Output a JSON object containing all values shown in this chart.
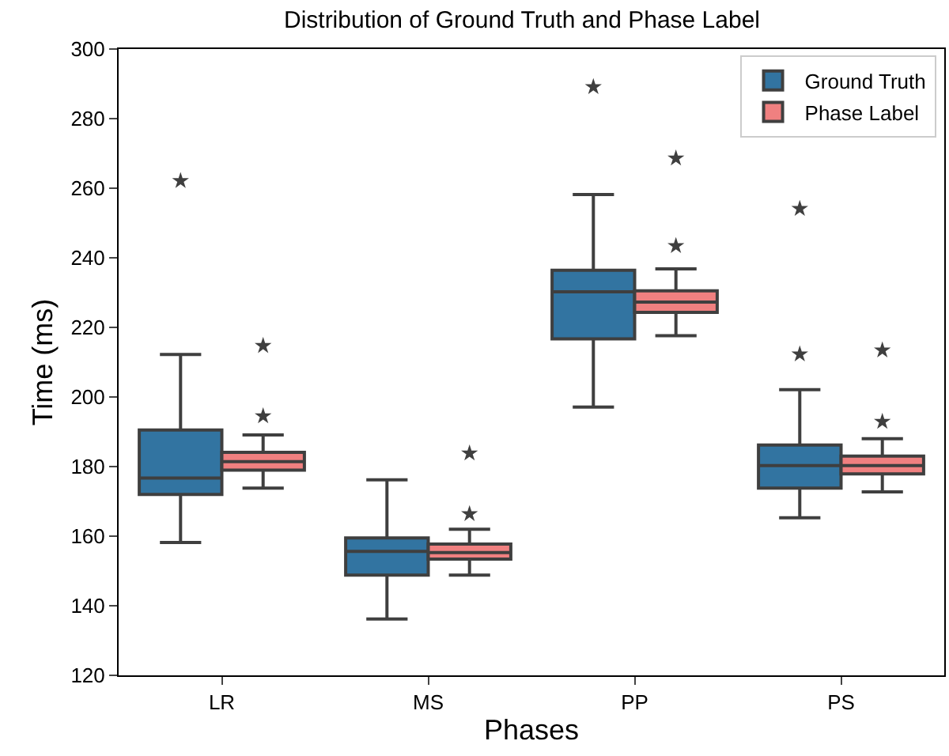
{
  "chart_data": {
    "type": "box",
    "title": "Distribution of Ground Truth and Phase Label",
    "xlabel": "Phases",
    "ylabel": "Time (ms)",
    "categories": [
      "LR",
      "MS",
      "PP",
      "PS"
    ],
    "series": [
      {
        "name": "Ground Truth",
        "color": "#3274a1",
        "boxes": [
          {
            "low": 158.2,
            "q1": 172,
            "median": 176.7,
            "q3": 190.5,
            "high": 212.2,
            "outliers": [
              262.1
            ]
          },
          {
            "low": 136.2,
            "q1": 148.8,
            "median": 155.6,
            "q3": 159.5,
            "high": 176.2
          },
          {
            "low": 197.1,
            "q1": 216.7,
            "median": 230.2,
            "q3": 236.4,
            "high": 258.2,
            "outliers": [
              289.1
            ]
          },
          {
            "low": 165.3,
            "q1": 173.8,
            "median": 180.3,
            "q3": 186.2,
            "high": 202.1,
            "outliers": [
              254.1,
              212.3
            ]
          }
        ]
      },
      {
        "name": "Phase Label",
        "color": "#f08080",
        "boxes": [
          {
            "low": 173.8,
            "q1": 179,
            "median": 181.4,
            "q3": 184.1,
            "high": 189.1,
            "outliers": [
              214.7,
              194.5
            ]
          },
          {
            "low": 148.8,
            "q1": 153.4,
            "median": 155.3,
            "q3": 157.7,
            "high": 162,
            "outliers": [
              183.8,
              166.4
            ]
          },
          {
            "low": 217.6,
            "q1": 224.3,
            "median": 227.3,
            "q3": 230.5,
            "high": 236.8,
            "outliers": [
              268.6,
              243.4
            ]
          },
          {
            "low": 172.7,
            "q1": 177.9,
            "median": 180.3,
            "q3": 183,
            "high": 188,
            "outliers": [
              213.4,
              192.9
            ]
          }
        ]
      }
    ],
    "ylim": [
      120,
      300
    ],
    "yticks": [
      120,
      140,
      160,
      180,
      200,
      220,
      240,
      260,
      280,
      300
    ],
    "legend": "top right",
    "marker": "star"
  }
}
